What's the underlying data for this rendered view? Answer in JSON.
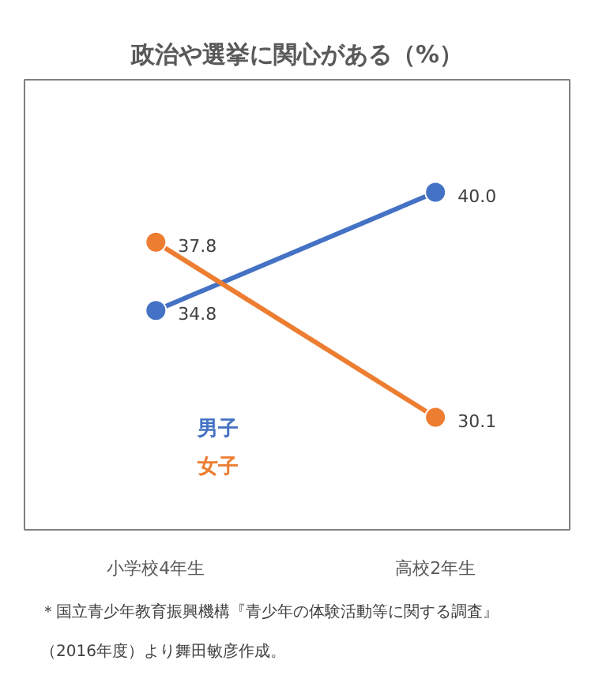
{
  "chart_data": {
    "type": "line",
    "title": "政治や選挙に関心がある（%）",
    "categories": [
      "小学校4年生",
      "高校2年生"
    ],
    "series": [
      {
        "name": "男子",
        "color": "#4472c4",
        "values": [
          34.8,
          40.0
        ],
        "value_labels": [
          "34.8",
          "40.0"
        ]
      },
      {
        "name": "女子",
        "color": "#ed7d31",
        "values": [
          37.8,
          30.1
        ],
        "value_labels": [
          "37.8",
          "30.1"
        ]
      }
    ],
    "marker": "circle",
    "legend": "bottom left",
    "grid": false,
    "annotations": [
      "＊国立青少年教育振興機構『青少年の体験活動等に関する調査』（2016年度）より舞田敏彦作成。"
    ]
  }
}
